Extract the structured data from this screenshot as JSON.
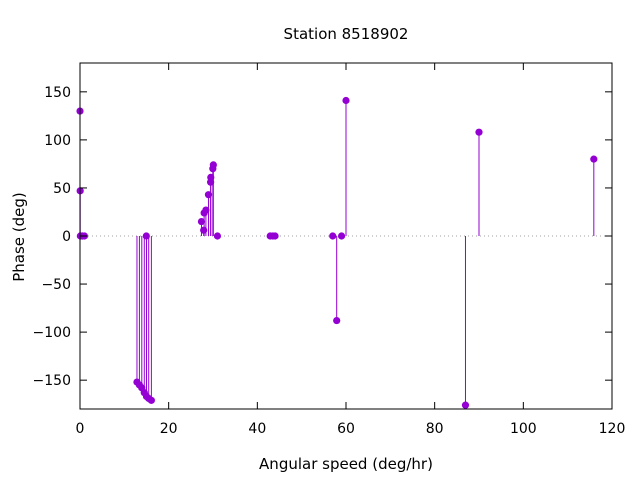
{
  "chart_data": {
    "type": "stem",
    "title": "Station 8518902",
    "xlabel": "Angular speed (deg/hr)",
    "ylabel": "Phase (deg)",
    "xlim": [
      0,
      120
    ],
    "ylim": [
      -180,
      180
    ],
    "xticks": [
      0,
      20,
      40,
      60,
      80,
      100,
      120
    ],
    "yticks": [
      -150,
      -100,
      -50,
      0,
      50,
      100,
      150
    ],
    "grid": false,
    "legend": "none",
    "zero_line": true,
    "colors": {
      "series": "#9400d3",
      "axis": "#000000",
      "zero_line": "#a0a0a0"
    },
    "series": [
      {
        "values": [
          {
            "x": 0.0,
            "y": 130
          },
          {
            "x": 0.04,
            "y": 47
          },
          {
            "x": 0.08,
            "y": 0
          },
          {
            "x": 0.5,
            "y": 0
          },
          {
            "x": 0.55,
            "y": 0
          },
          {
            "x": 1.0,
            "y": 0
          },
          {
            "x": 12.85,
            "y": -152
          },
          {
            "x": 13.4,
            "y": -155
          },
          {
            "x": 13.94,
            "y": -158
          },
          {
            "x": 14.5,
            "y": -163
          },
          {
            "x": 14.96,
            "y": 0
          },
          {
            "x": 15.0,
            "y": -167
          },
          {
            "x": 15.5,
            "y": -169
          },
          {
            "x": 16.1,
            "y": -171
          },
          {
            "x": 27.4,
            "y": 15
          },
          {
            "x": 27.9,
            "y": 6
          },
          {
            "x": 28.0,
            "y": 24
          },
          {
            "x": 28.4,
            "y": 27
          },
          {
            "x": 28.98,
            "y": 43
          },
          {
            "x": 29.46,
            "y": 56
          },
          {
            "x": 29.5,
            "y": 61
          },
          {
            "x": 29.96,
            "y": 70
          },
          {
            "x": 30.08,
            "y": 74
          },
          {
            "x": 31.0,
            "y": 0
          },
          {
            "x": 42.9,
            "y": 0
          },
          {
            "x": 43.5,
            "y": 0
          },
          {
            "x": 44.0,
            "y": 0
          },
          {
            "x": 57.0,
            "y": 0
          },
          {
            "x": 57.9,
            "y": -88
          },
          {
            "x": 59.0,
            "y": 0
          },
          {
            "x": 60.0,
            "y": 141
          },
          {
            "x": 86.95,
            "y": -176
          },
          {
            "x": 90.0,
            "y": 108
          },
          {
            "x": 115.9,
            "y": 80
          }
        ]
      }
    ]
  }
}
